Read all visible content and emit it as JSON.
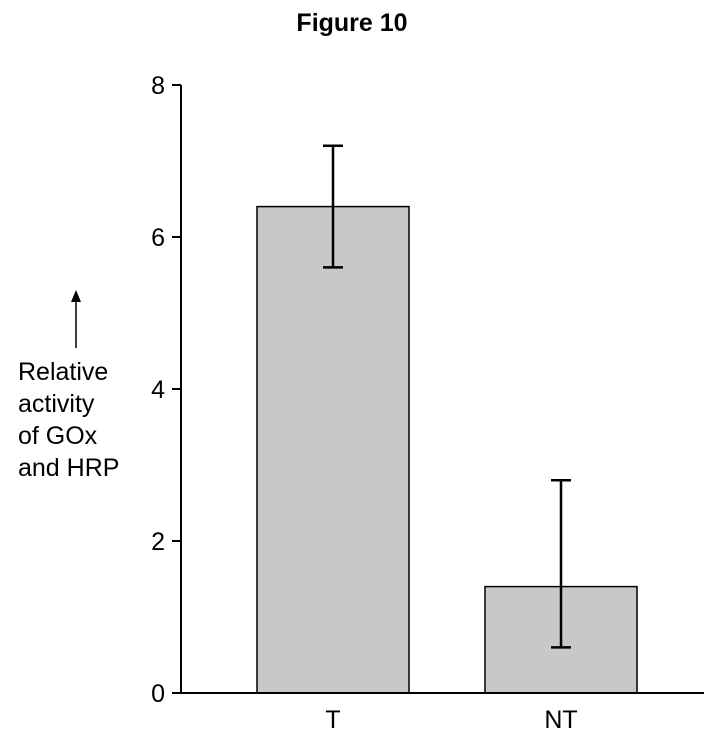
{
  "chart_data": {
    "type": "bar",
    "title": "Figure 10",
    "categories": [
      "T",
      "NT"
    ],
    "values": [
      6.4,
      1.4
    ],
    "error_bars": [
      {
        "low": 5.6,
        "high": 7.2
      },
      {
        "low": 0.6,
        "high": 2.8
      }
    ],
    "ylabel_lines": [
      "Relative",
      "activity",
      "of GOx",
      "and HRP"
    ],
    "ylim": [
      0,
      8
    ],
    "yticks": [
      "0",
      "2",
      "4",
      "6",
      "8"
    ],
    "grid": false,
    "bar_color": "#c8c8c8"
  }
}
